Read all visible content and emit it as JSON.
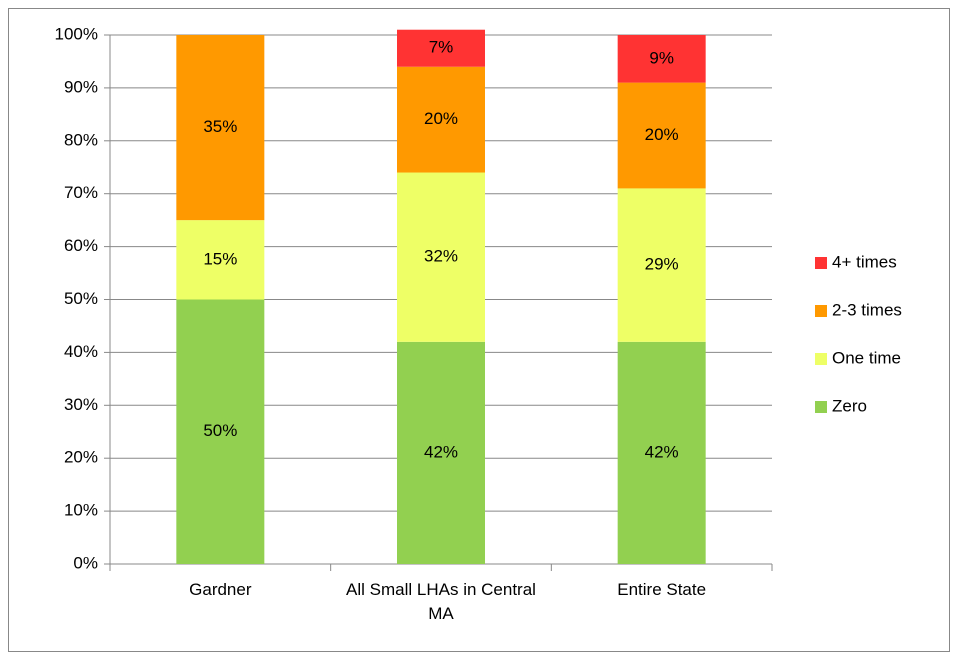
{
  "chart_data": {
    "type": "stacked_bar",
    "categories": [
      "Gardner",
      "All Small LHAs in Central MA",
      "Entire State"
    ],
    "series": [
      {
        "name": "Zero",
        "color": "#92d050",
        "values": [
          50,
          42,
          42
        ],
        "value_labels": [
          "50%",
          "42%",
          "42%"
        ]
      },
      {
        "name": "One time",
        "color": "#eeff66",
        "values": [
          15,
          32,
          29
        ],
        "value_labels": [
          "15%",
          "32%",
          "29%"
        ]
      },
      {
        "name": "2-3 times",
        "color": "#ff9900",
        "values": [
          35,
          20,
          20
        ],
        "value_labels": [
          "35%",
          "20%",
          "20%"
        ]
      },
      {
        "name": "4+ times",
        "color": "#ff3333",
        "values": [
          0,
          7,
          9
        ],
        "value_labels": [
          null,
          "7%",
          "9%"
        ]
      }
    ],
    "ylim": [
      0,
      100
    ],
    "yticks": [
      {
        "value": 0,
        "label": "0%"
      },
      {
        "value": 10,
        "label": "10%"
      },
      {
        "value": 20,
        "label": "20%"
      },
      {
        "value": 30,
        "label": "30%"
      },
      {
        "value": 40,
        "label": "40%"
      },
      {
        "value": 50,
        "label": "50%"
      },
      {
        "value": 60,
        "label": "60%"
      },
      {
        "value": 70,
        "label": "70%"
      },
      {
        "value": 80,
        "label": "80%"
      },
      {
        "value": 90,
        "label": "90%"
      },
      {
        "value": 100,
        "label": "100%"
      }
    ],
    "grid": true,
    "legend": "right"
  }
}
